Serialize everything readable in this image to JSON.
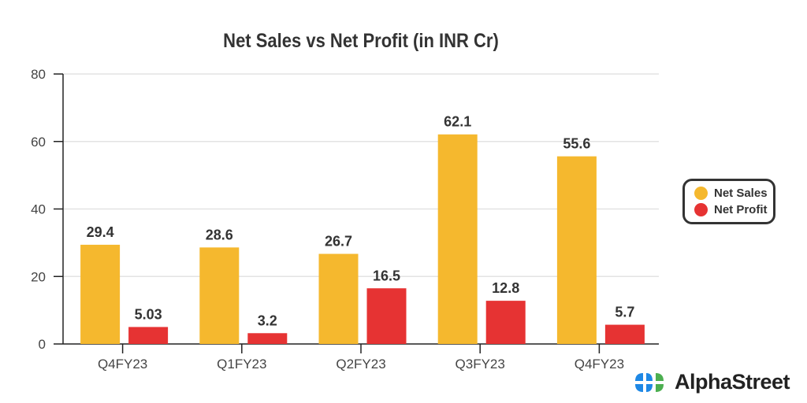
{
  "chart_data": {
    "type": "bar",
    "title": "Net Sales vs Net Profit (in INR Cr)",
    "categories": [
      "Q4FY23",
      "Q1FY23",
      "Q2FY23",
      "Q3FY23",
      "Q4FY23"
    ],
    "series": [
      {
        "name": "Net Sales",
        "color": "#F5B82E",
        "values": [
          29.4,
          28.6,
          26.7,
          62.1,
          55.6
        ],
        "labels": [
          "29.4",
          "28.6",
          "26.7",
          "62.1",
          "55.6"
        ]
      },
      {
        "name": "Net Profit",
        "color": "#E63333",
        "values": [
          5.03,
          3.2,
          16.5,
          12.8,
          5.7
        ],
        "labels": [
          "5.03",
          "3.2",
          "16.5",
          "12.8",
          "5.7"
        ]
      }
    ],
    "xlabel": "",
    "ylabel": "",
    "ylim": [
      0,
      80
    ],
    "yticks": [
      "0",
      "20",
      "40",
      "60",
      "80"
    ],
    "grid": true,
    "legend_position": "right"
  },
  "brand": {
    "name": "AlphaStreet"
  }
}
